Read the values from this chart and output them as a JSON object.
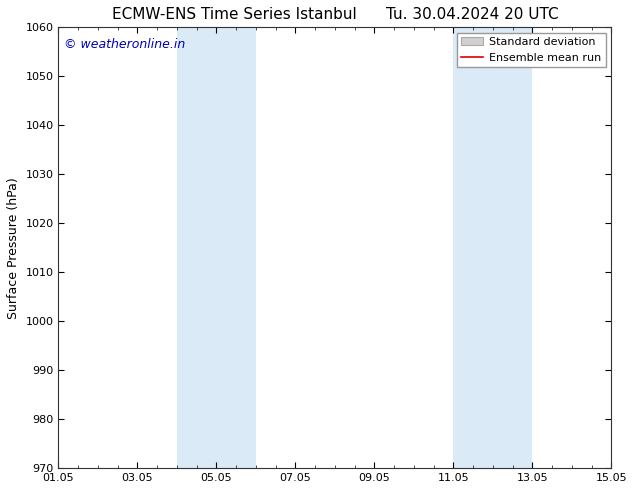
{
  "title_left": "ECMW-ENS Time Series Istanbul",
  "title_right": "Tu. 30.04.2024 20 UTC",
  "ylabel": "Surface Pressure (hPa)",
  "ylim": [
    970,
    1060
  ],
  "yticks": [
    970,
    980,
    990,
    1000,
    1010,
    1020,
    1030,
    1040,
    1050,
    1060
  ],
  "xlim_start": 0,
  "xlim_end": 14,
  "xtick_positions": [
    0,
    2,
    4,
    6,
    8,
    10,
    12,
    14
  ],
  "xtick_labels": [
    "01.05",
    "03.05",
    "05.05",
    "07.05",
    "09.05",
    "11.05",
    "13.05",
    "15.05"
  ],
  "shaded_bands": [
    {
      "xmin": 3.0,
      "xmax": 5.0
    },
    {
      "xmin": 10.0,
      "xmax": 12.0
    }
  ],
  "band_color": "#daeaf7",
  "band_alpha": 1.0,
  "watermark_text": "© weatheronline.in",
  "watermark_color": "#0000bb",
  "watermark_fontsize": 9,
  "legend_std_color": "#d0d0d0",
  "legend_std_edge": "#aaaaaa",
  "legend_mean_color": "#dd0000",
  "background_color": "#ffffff",
  "title_fontsize": 11,
  "ylabel_fontsize": 9,
  "tick_fontsize": 8,
  "legend_fontsize": 8
}
